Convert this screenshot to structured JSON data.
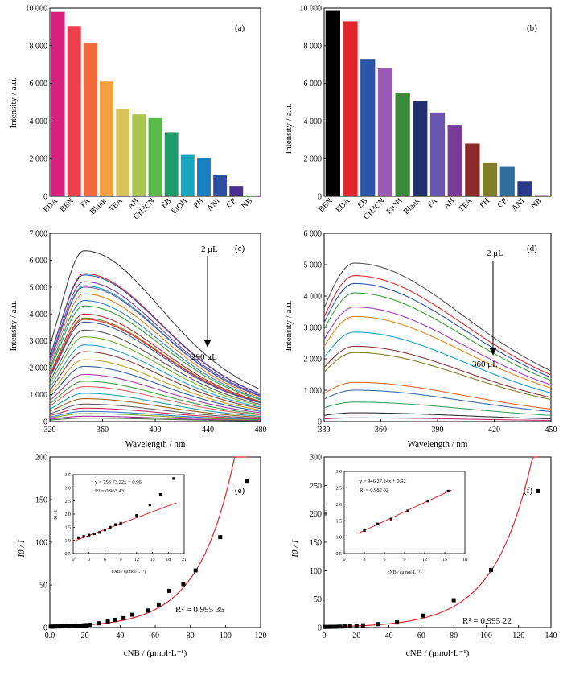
{
  "chart_data": [
    {
      "panel": "(a)",
      "type": "bar",
      "ylabel": "Intensity / a.u.",
      "ylim": [
        0,
        10000
      ],
      "yticks": [
        "0",
        "2 000",
        "4 000",
        "6 000",
        "8 000",
        "10 000"
      ],
      "categories": [
        "EDA",
        "BEN",
        "FA",
        "Blank",
        "TEA",
        "AH",
        "CH3CN",
        "EB",
        "EtOH",
        "PH",
        "ANI",
        "CP",
        "NB"
      ],
      "values": [
        9800,
        9050,
        8150,
        6100,
        4650,
        4350,
        4150,
        3400,
        2200,
        2050,
        1150,
        550,
        50
      ],
      "colors": [
        "#d6217f",
        "#e8404c",
        "#f16a3c",
        "#f5a040",
        "#d6c45a",
        "#a9c44f",
        "#5bb94a",
        "#1e9c6c",
        "#17a5c2",
        "#1b7fc4",
        "#2d4fa3",
        "#4a2f8f",
        "#7a2f8f"
      ]
    },
    {
      "panel": "(b)",
      "type": "bar",
      "ylabel": "Intensity / a.u.",
      "ylim": [
        0,
        10000
      ],
      "yticks": [
        "0",
        "2 000",
        "4 000",
        "6 000",
        "8 000",
        "10 000"
      ],
      "categories": [
        "BEN",
        "EDA",
        "EB",
        "CH3CN",
        "EtOH",
        "Blank",
        "FA",
        "AH",
        "TEA",
        "PH",
        "CP",
        "ANI",
        "NB"
      ],
      "values": [
        9850,
        9300,
        7300,
        6800,
        5500,
        5050,
        4450,
        3800,
        2800,
        1800,
        1600,
        800,
        60
      ],
      "colors": [
        "#000000",
        "#e3262b",
        "#2b55a8",
        "#9b59b6",
        "#3a8a3a",
        "#25316e",
        "#6a55b0",
        "#7a3a9a",
        "#8a2a2a",
        "#7f7f2a",
        "#2f6fa0",
        "#2a3a8f",
        "#6b3aa0"
      ]
    },
    {
      "panel": "(c)",
      "type": "line",
      "xlabel": "Wavelength / nm",
      "ylabel": "Intensity / a.u.",
      "xlim": [
        320,
        480
      ],
      "ylim": [
        0,
        7000
      ],
      "xticks": [
        "320",
        "360",
        "400",
        "440",
        "480"
      ],
      "yticks": [
        "0",
        "1 000",
        "2 000",
        "3 000",
        "4 000",
        "5 000",
        "6 000",
        "7 000"
      ],
      "annotation_top": "2 μL",
      "annotation_bottom": "290 μL",
      "peak_x": 346,
      "peaks": [
        6350,
        5500,
        5450,
        5200,
        5050,
        5000,
        4750,
        4500,
        4300,
        4000,
        3850,
        3800,
        3700,
        3400,
        3150,
        2850,
        2600,
        2300,
        2050,
        1750,
        1500,
        1300,
        1050,
        850,
        650,
        500,
        380,
        300,
        200,
        130
      ],
      "colors": [
        "#444444",
        "#e3262b",
        "#2b55a8",
        "#8a3aa8",
        "#1a9f9f",
        "#6a55b0",
        "#e37d1a",
        "#2f7fbf",
        "#39a039",
        "#b03030",
        "#7f7f2a",
        "#e3262b",
        "#3a5aa8",
        "#555555",
        "#6fb030",
        "#30a0c0",
        "#8a3a3a",
        "#c0a020",
        "#3060a0",
        "#a040a0",
        "#40a040",
        "#e06060",
        "#20a0a0",
        "#a06020",
        "#606060",
        "#c03060",
        "#3080c0",
        "#80a030",
        "#a030a0",
        "#507050"
      ]
    },
    {
      "panel": "(d)",
      "type": "line",
      "xlabel": "Wavelength / nm",
      "ylabel": "Intensity / a.u.",
      "xlim": [
        330,
        450
      ],
      "ylim": [
        0,
        6000
      ],
      "xticks": [
        "330",
        "360",
        "390",
        "420",
        "450"
      ],
      "yticks": [
        "0",
        "1 000",
        "2 000",
        "3 000",
        "4 000",
        "5 000",
        "6 000"
      ],
      "annotation_top": "2 μL",
      "annotation_bottom": "360 μL",
      "peak_x": 346,
      "peaks": [
        5050,
        4650,
        4400,
        4100,
        3650,
        3350,
        2850,
        2400,
        2200,
        1250,
        1000,
        620,
        280,
        120
      ],
      "colors": [
        "#555555",
        "#e3262b",
        "#2b55a8",
        "#39a039",
        "#a040c0",
        "#e38a1a",
        "#1aa0c0",
        "#8a3a3a",
        "#7f7f2a",
        "#e36a2a",
        "#3a6aa8",
        "#40a060",
        "#333333",
        "#c03070"
      ]
    },
    {
      "panel": "(e)",
      "type": "scatter",
      "xlabel": "cNB / (μmol·L⁻¹)",
      "ylabel": "I0 / I",
      "xlim": [
        0,
        120
      ],
      "ylim": [
        0,
        200
      ],
      "xticks": [
        "0.0",
        "20",
        "40",
        "60",
        "80",
        "100",
        "120"
      ],
      "yticks": [
        "0",
        "50",
        "100",
        "150",
        "200"
      ],
      "r2_label": "R² = 0.995 35",
      "x": [
        0.5,
        1.5,
        3,
        4.5,
        6,
        7.5,
        9,
        10.5,
        12,
        13.5,
        15,
        16.5,
        18,
        19.5,
        21,
        23,
        28,
        33,
        37,
        42,
        47,
        56,
        62,
        68,
        76,
        83,
        97,
        112
      ],
      "y": [
        1.1,
        1.15,
        1.2,
        1.3,
        1.35,
        1.4,
        1.5,
        1.6,
        1.7,
        1.8,
        2.0,
        2.2,
        2.4,
        2.6,
        2.9,
        3.4,
        5,
        7,
        9,
        11,
        15,
        20,
        27,
        43,
        51,
        67,
        106,
        172
      ],
      "fit_curve": {
        "color": "#e3262b"
      },
      "inset": {
        "type": "scatter",
        "equation": "y = 753 73.22x + 0.96",
        "r2": "R² = 0.963 43",
        "ylabel": "I0 / I",
        "xlabel": "cNB / (μmol·L⁻¹)",
        "xlim": [
          0,
          21
        ],
        "ylim": [
          0.5,
          3.5
        ],
        "xticks": [
          "0",
          "3",
          "6",
          "9",
          "12",
          "15",
          "18",
          "21"
        ],
        "yticks": [
          "0.5",
          "1.0",
          "1.5",
          "2.0",
          "2.5",
          "3.0",
          "3.5"
        ],
        "x": [
          1,
          2,
          3,
          4,
          5,
          6,
          7,
          8,
          9,
          12,
          14.5,
          16.5,
          19
        ],
        "y": [
          1.1,
          1.15,
          1.2,
          1.25,
          1.3,
          1.4,
          1.5,
          1.6,
          1.65,
          1.95,
          2.35,
          2.75,
          3.35
        ],
        "fit": {
          "slope": 0.0753,
          "intercept": 0.96
        }
      }
    },
    {
      "panel": "(f)",
      "type": "scatter",
      "xlabel": "cNB / (μmol·L⁻¹)",
      "ylabel": "I0 / I",
      "xlim": [
        0,
        140
      ],
      "ylim": [
        0,
        300
      ],
      "xticks": [
        "0",
        "20",
        "40",
        "60",
        "80",
        "100",
        "120",
        "140"
      ],
      "yticks": [
        "0",
        "50",
        "100",
        "150",
        "200",
        "250",
        "300"
      ],
      "r2_label": "R² = 0.995 22",
      "x": [
        0.5,
        2,
        4,
        6,
        8,
        10,
        13,
        16,
        20,
        24,
        33,
        45,
        61,
        80,
        103,
        132
      ],
      "y": [
        1.1,
        1.2,
        1.3,
        1.4,
        1.5,
        1.7,
        2.0,
        2.4,
        3,
        4,
        6,
        9,
        21,
        48,
        101,
        240
      ],
      "fit_curve": {
        "color": "#e3262b"
      },
      "inset": {
        "type": "scatter",
        "equation": "y = 946 27.24x + 0.92",
        "r2": "R² = 0.982 02",
        "ylabel": "I0 / I",
        "xlabel": "cNB / (μmol·L⁻¹)",
        "xlim": [
          0,
          18
        ],
        "ylim": [
          0.5,
          3.0
        ],
        "xticks": [
          "0",
          "3",
          "6",
          "9",
          "12",
          "15",
          "18"
        ],
        "yticks": [
          "0.5",
          "1.0",
          "1.5",
          "2.0",
          "2.5",
          "3.0"
        ],
        "x": [
          3,
          5,
          7,
          9.5,
          12.5,
          15.5
        ],
        "y": [
          1.2,
          1.4,
          1.55,
          1.8,
          2.1,
          2.4
        ],
        "fit": {
          "slope": 0.0946,
          "intercept": 0.92
        }
      }
    }
  ]
}
